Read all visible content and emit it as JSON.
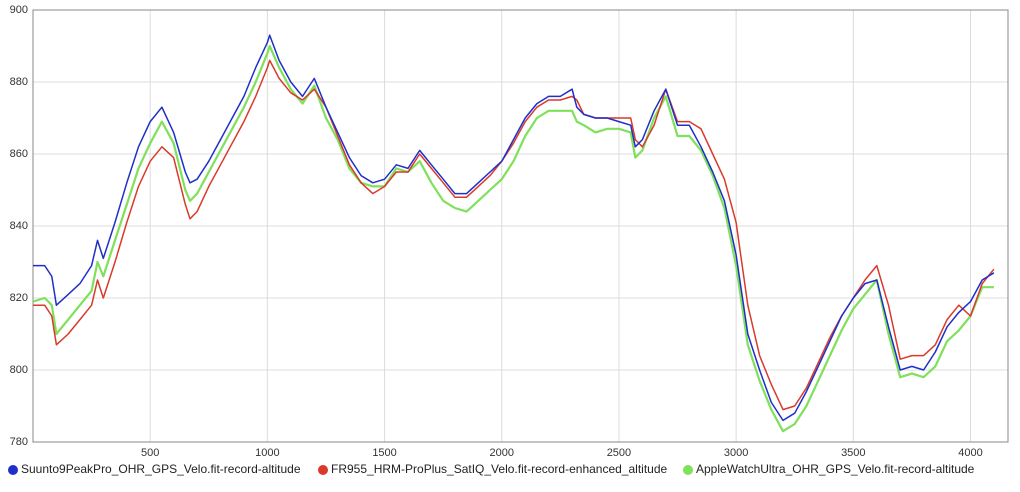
{
  "chart_data": {
    "type": "line",
    "x": [
      0,
      50,
      80,
      100,
      150,
      200,
      250,
      275,
      300,
      350,
      400,
      450,
      500,
      550,
      600,
      650,
      670,
      700,
      750,
      800,
      850,
      900,
      950,
      1000,
      1010,
      1050,
      1100,
      1150,
      1200,
      1250,
      1300,
      1350,
      1400,
      1450,
      1500,
      1550,
      1600,
      1650,
      1700,
      1750,
      1800,
      1850,
      1900,
      1950,
      2000,
      2050,
      2100,
      2150,
      2200,
      2250,
      2300,
      2320,
      2350,
      2400,
      2450,
      2500,
      2550,
      2570,
      2600,
      2650,
      2700,
      2750,
      2800,
      2850,
      2900,
      2950,
      3000,
      3050,
      3100,
      3150,
      3200,
      3250,
      3300,
      3350,
      3400,
      3450,
      3500,
      3550,
      3600,
      3650,
      3700,
      3750,
      3800,
      3850,
      3900,
      3950,
      4000,
      4050,
      4100
    ],
    "series": [
      {
        "name": "Suunto9PeakPro_OHR_GPS_Velo.fit-record-altitude",
        "color": "#1f2fc9",
        "values": [
          829,
          829,
          826,
          818,
          821,
          824,
          829,
          836,
          831,
          841,
          852,
          862,
          869,
          873,
          866,
          855,
          852,
          853,
          858,
          864,
          870,
          876,
          884,
          891,
          893,
          886,
          880,
          876,
          881,
          873,
          866,
          859,
          854,
          852,
          853,
          857,
          856,
          861,
          857,
          853,
          849,
          849,
          852,
          855,
          858,
          864,
          870,
          874,
          876,
          876,
          878,
          873,
          871,
          870,
          870,
          869,
          868,
          862,
          864,
          872,
          878,
          868,
          868,
          862,
          855,
          847,
          832,
          810,
          800,
          791,
          786,
          788,
          794,
          801,
          808,
          815,
          820,
          824,
          825,
          812,
          800,
          801,
          800,
          805,
          812,
          816,
          819,
          825,
          827
        ]
      },
      {
        "name": "FR955_HRM-ProPlus_SatIQ_Velo.fit-record-enhanced_altitude",
        "color": "#d93a2b",
        "values": [
          818,
          818,
          815,
          807,
          810,
          814,
          818,
          825,
          820,
          830,
          841,
          851,
          858,
          862,
          859,
          846,
          842,
          844,
          851,
          857,
          863,
          869,
          876,
          884,
          886,
          881,
          877,
          875,
          878,
          873,
          865,
          857,
          852,
          849,
          851,
          855,
          855,
          860,
          856,
          852,
          848,
          848,
          851,
          854,
          858,
          863,
          869,
          873,
          875,
          875,
          876,
          875,
          871,
          870,
          870,
          870,
          870,
          864,
          862,
          868,
          878,
          869,
          869,
          867,
          860,
          853,
          841,
          818,
          804,
          796,
          789,
          790,
          795,
          802,
          809,
          815,
          820,
          825,
          829,
          818,
          803,
          804,
          804,
          807,
          814,
          818,
          815,
          824,
          828
        ]
      },
      {
        "name": "AppleWatchUltra_OHR_GPS_Velo.fit-record-altitude",
        "color": "#7fe05a",
        "values": [
          819,
          820,
          818,
          810,
          814,
          818,
          822,
          830,
          826,
          836,
          846,
          856,
          863,
          869,
          863,
          850,
          847,
          849,
          855,
          861,
          867,
          873,
          880,
          888,
          890,
          884,
          878,
          874,
          879,
          870,
          864,
          856,
          852,
          851,
          851,
          856,
          855,
          858,
          852,
          847,
          845,
          844,
          847,
          850,
          853,
          858,
          865,
          870,
          872,
          872,
          872,
          869,
          868,
          866,
          867,
          867,
          866,
          859,
          861,
          870,
          876,
          865,
          865,
          861,
          854,
          845,
          829,
          807,
          797,
          789,
          783,
          785,
          790,
          797,
          804,
          811,
          817,
          821,
          825,
          810,
          798,
          799,
          798,
          801,
          808,
          811,
          815,
          823,
          823
        ]
      }
    ],
    "xlim": [
      0,
      4160
    ],
    "ylim": [
      780,
      900
    ],
    "xticks": [
      500,
      1000,
      1500,
      2000,
      2500,
      3000,
      3500,
      4000
    ],
    "yticks": [
      780,
      800,
      820,
      840,
      860,
      880,
      900
    ],
    "grid": true
  }
}
